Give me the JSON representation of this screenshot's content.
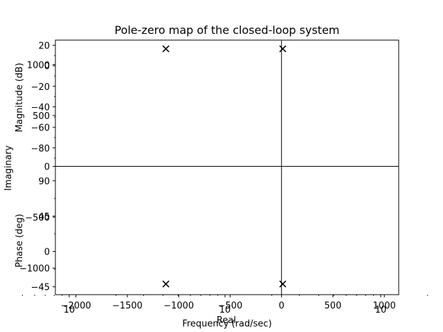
{
  "chart_data": [
    {
      "type": "scatter",
      "title": "Pole-zero map of the closed-loop system",
      "xlabel": "Real",
      "ylabel": "Imaginary",
      "xlim": [
        -2200,
        1140
      ],
      "ylim": [
        -1260,
        1240
      ],
      "x_ticks": [
        -2000,
        -1500,
        -1000,
        -500,
        0,
        500,
        1000
      ],
      "x_tick_labels": [
        "−2000",
        "−1500",
        "−1000",
        "−500",
        "0",
        "500",
        "1000"
      ],
      "y_ticks": [
        -1000,
        -500,
        0,
        500,
        1000
      ],
      "y_tick_labels": [
        "−1000",
        "−500",
        "0",
        "500",
        "1000"
      ],
      "marker": "x",
      "color": "#000000",
      "grid": false,
      "series": [
        {
          "values": [
            {
              "x": -1125,
              "y": 1155
            },
            {
              "x": -1125,
              "y": -1155
            },
            {
              "x": 12,
              "y": 1155
            },
            {
              "x": 12,
              "y": -1155
            }
          ]
        }
      ]
    },
    {
      "type": "line",
      "panel": "magnitude",
      "ylabel": "Magnitude (dB)",
      "ylim": [
        -95,
        25
      ],
      "y_ticks": [
        20,
        0,
        -20,
        -40,
        -60,
        -80
      ],
      "y_tick_labels": [
        "20",
        "0",
        "−20",
        "−40",
        "−60",
        "−80"
      ],
      "grid": false
    },
    {
      "type": "line",
      "panel": "phase",
      "xlabel": "Frequency (rad/sec)",
      "ylabel": "Phase (deg)",
      "xscale": "log",
      "x_tick_labels": [
        "10",
        "10",
        "10"
      ],
      "ylim": [
        -55,
        100
      ],
      "y_ticks": [
        90,
        45,
        0,
        -45
      ],
      "y_tick_labels": [
        "90",
        "45",
        "0",
        "−45"
      ],
      "grid": false
    }
  ]
}
